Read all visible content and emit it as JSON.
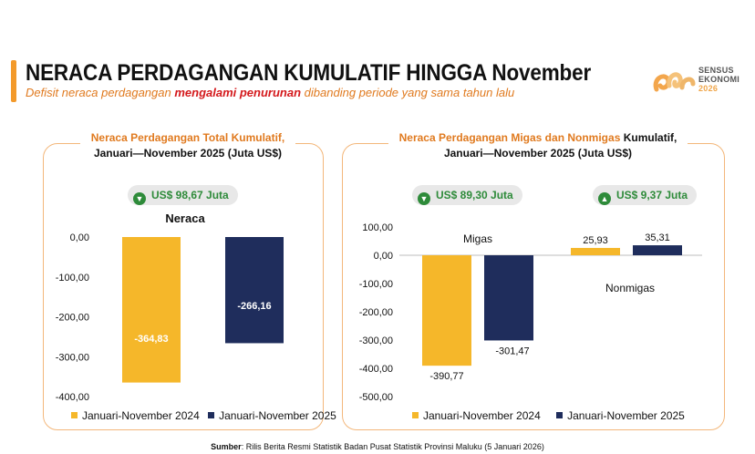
{
  "header": {
    "title": "NERACA PERDAGANGAN KUMULATIF HINGGA November",
    "subtitle_pre": "Defisit neraca perdagangan ",
    "subtitle_em": "mengalami penurunan",
    "subtitle_post": " dibanding periode yang sama tahun lalu"
  },
  "logo": {
    "line1": "SENSUS",
    "line2": "EKONOMI",
    "line3": "2026"
  },
  "colors": {
    "orange": "#f5b72a",
    "navy": "#1f2d5c",
    "accent": "#f39a2b",
    "green": "#2e8b3a"
  },
  "left_panel": {
    "title_orange": "Neraca Perdagangan Total Kumulatif,",
    "title_black": "Januari—November 2025 (Juta US$)",
    "pill": "US$ 98,67 Juta"
  },
  "right_panel": {
    "title_orange": "Neraca Perdagangan Migas dan Nonmigas",
    "title_black_1": " Kumulatif,",
    "title_black_2": "Januari—November 2025 (Juta US$)",
    "pill_migas": "US$ 89,30 Juta",
    "pill_nonmigas": "US$ 9,37 Juta"
  },
  "legend": {
    "a": "Januari-November 2024",
    "b": "Januari-November 2025"
  },
  "source": {
    "label": "Sumber",
    "text": ": Rilis Berita Resmi Statistik Badan Pusat Statistik Provinsi Maluku (5 Januari 2026)"
  },
  "chart_data": [
    {
      "type": "bar",
      "title": "Neraca",
      "categories": [
        "Neraca"
      ],
      "series": [
        {
          "name": "Januari-November 2024",
          "values": [
            -364.83
          ],
          "labels": [
            "-364,83"
          ]
        },
        {
          "name": "Januari-November 2025",
          "values": [
            -266.16
          ],
          "labels": [
            "-266,16"
          ]
        }
      ],
      "ylim": [
        -400,
        0
      ],
      "yticks": [
        0,
        -100,
        -200,
        -300,
        -400
      ],
      "ytick_labels": [
        "0,00",
        "-100,00",
        "-200,00",
        "-300,00",
        "-400,00"
      ]
    },
    {
      "type": "bar",
      "title": "",
      "categories": [
        "Migas",
        "Nonmigas"
      ],
      "series": [
        {
          "name": "Januari-November 2024",
          "values": [
            -390.77,
            25.93
          ],
          "labels": [
            "-390,77",
            "25,93"
          ]
        },
        {
          "name": "Januari-November 2025",
          "values": [
            -301.47,
            35.31
          ],
          "labels": [
            "-301,47",
            "35,31"
          ]
        }
      ],
      "ylim": [
        -500,
        100
      ],
      "yticks": [
        100,
        0,
        -100,
        -200,
        -300,
        -400,
        -500
      ],
      "ytick_labels": [
        "100,00",
        "0,00",
        "-100,00",
        "-200,00",
        "-300,00",
        "-400,00",
        "-500,00"
      ]
    }
  ]
}
